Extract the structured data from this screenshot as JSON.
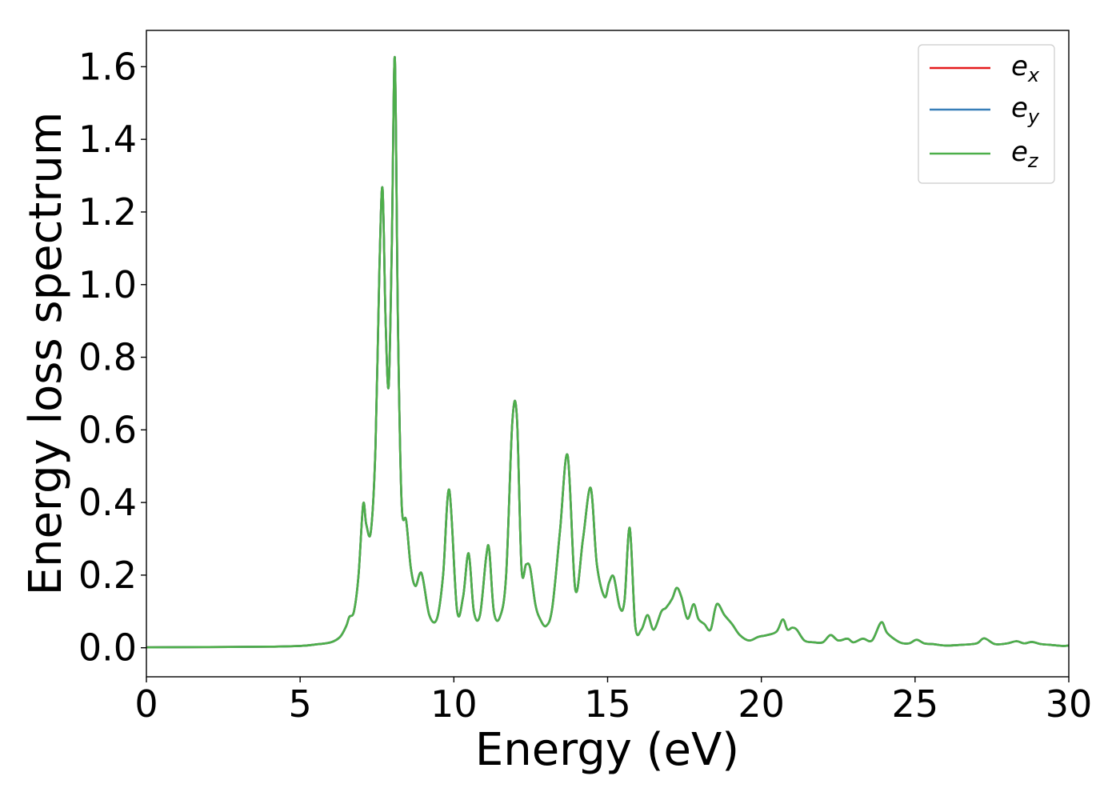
{
  "chart_data": {
    "type": "line",
    "title": "",
    "xlabel": "Energy (eV)",
    "ylabel": "Energy loss spectrum",
    "xlim": [
      0,
      30
    ],
    "ylim": [
      -0.08,
      1.7
    ],
    "xticks": [
      0,
      5,
      10,
      15,
      20,
      25,
      30
    ],
    "xtick_labels": [
      "0",
      "5",
      "10",
      "15",
      "20",
      "25",
      "30"
    ],
    "yticks": [
      0.0,
      0.2,
      0.4,
      0.6,
      0.8,
      1.0,
      1.2,
      1.4,
      1.6
    ],
    "ytick_labels": [
      "0.0",
      "0.2",
      "0.4",
      "0.6",
      "0.8",
      "1.0",
      "1.2",
      "1.4",
      "1.6"
    ],
    "grid": false,
    "legend_position": "top-right",
    "x": [
      0,
      2,
      4,
      5,
      5.5,
      6.0,
      6.3,
      6.5,
      6.6,
      6.75,
      6.9,
      7.05,
      7.15,
      7.3,
      7.45,
      7.58,
      7.68,
      7.78,
      7.88,
      7.98,
      8.08,
      8.18,
      8.3,
      8.45,
      8.6,
      8.75,
      8.95,
      9.2,
      9.45,
      9.65,
      9.85,
      10.1,
      10.3,
      10.48,
      10.65,
      10.85,
      11.05,
      11.15,
      11.3,
      11.5,
      11.7,
      11.9,
      12.05,
      12.2,
      12.35,
      12.48,
      12.65,
      12.8,
      13.0,
      13.2,
      13.45,
      13.7,
      13.95,
      14.2,
      14.45,
      14.65,
      14.9,
      15.05,
      15.2,
      15.4,
      15.55,
      15.72,
      15.9,
      16.1,
      16.3,
      16.5,
      16.75,
      16.9,
      17.1,
      17.25,
      17.4,
      17.6,
      17.8,
      17.95,
      18.15,
      18.35,
      18.55,
      18.8,
      19.05,
      19.3,
      19.6,
      19.9,
      20.2,
      20.5,
      20.7,
      20.85,
      21.0,
      21.15,
      21.4,
      21.7,
      22.0,
      22.25,
      22.5,
      22.8,
      23.0,
      23.3,
      23.6,
      23.9,
      24.1,
      24.5,
      24.8,
      25.05,
      25.3,
      25.6,
      26.0,
      26.5,
      27.0,
      27.25,
      27.6,
      28.0,
      28.3,
      28.55,
      28.8,
      29.1,
      29.4,
      29.8,
      30.0
    ],
    "series": [
      {
        "name": "ex",
        "color": "#e41a1c",
        "values": [
          0.001,
          0.002,
          0.003,
          0.005,
          0.009,
          0.015,
          0.03,
          0.06,
          0.085,
          0.1,
          0.2,
          0.395,
          0.34,
          0.32,
          0.55,
          1.05,
          1.265,
          0.9,
          0.72,
          1.1,
          1.625,
          0.9,
          0.4,
          0.35,
          0.22,
          0.17,
          0.205,
          0.09,
          0.08,
          0.2,
          0.435,
          0.105,
          0.14,
          0.26,
          0.1,
          0.09,
          0.25,
          0.27,
          0.1,
          0.085,
          0.2,
          0.62,
          0.635,
          0.22,
          0.23,
          0.22,
          0.12,
          0.08,
          0.06,
          0.11,
          0.32,
          0.53,
          0.16,
          0.3,
          0.44,
          0.23,
          0.14,
          0.18,
          0.195,
          0.11,
          0.13,
          0.33,
          0.06,
          0.05,
          0.09,
          0.05,
          0.1,
          0.11,
          0.135,
          0.165,
          0.14,
          0.08,
          0.12,
          0.08,
          0.065,
          0.05,
          0.12,
          0.09,
          0.065,
          0.035,
          0.02,
          0.03,
          0.035,
          0.045,
          0.078,
          0.05,
          0.055,
          0.05,
          0.02,
          0.015,
          0.015,
          0.035,
          0.02,
          0.025,
          0.015,
          0.025,
          0.02,
          0.07,
          0.04,
          0.015,
          0.012,
          0.022,
          0.012,
          0.01,
          0.006,
          0.008,
          0.012,
          0.026,
          0.01,
          0.012,
          0.018,
          0.012,
          0.016,
          0.01,
          0.008,
          0.005,
          0.006
        ]
      },
      {
        "name": "ey",
        "color": "#377eb8",
        "values": [
          0.001,
          0.002,
          0.003,
          0.005,
          0.009,
          0.015,
          0.03,
          0.06,
          0.085,
          0.1,
          0.2,
          0.395,
          0.34,
          0.32,
          0.55,
          1.05,
          1.265,
          0.9,
          0.72,
          1.1,
          1.625,
          0.9,
          0.4,
          0.35,
          0.22,
          0.17,
          0.205,
          0.09,
          0.08,
          0.2,
          0.435,
          0.105,
          0.14,
          0.26,
          0.1,
          0.09,
          0.25,
          0.27,
          0.1,
          0.085,
          0.2,
          0.62,
          0.635,
          0.22,
          0.23,
          0.22,
          0.12,
          0.08,
          0.06,
          0.11,
          0.32,
          0.53,
          0.16,
          0.3,
          0.44,
          0.23,
          0.14,
          0.18,
          0.195,
          0.11,
          0.13,
          0.33,
          0.06,
          0.05,
          0.09,
          0.05,
          0.1,
          0.11,
          0.135,
          0.165,
          0.14,
          0.08,
          0.12,
          0.08,
          0.065,
          0.05,
          0.12,
          0.09,
          0.065,
          0.035,
          0.02,
          0.03,
          0.035,
          0.045,
          0.078,
          0.05,
          0.055,
          0.05,
          0.02,
          0.015,
          0.015,
          0.035,
          0.02,
          0.025,
          0.015,
          0.025,
          0.02,
          0.07,
          0.04,
          0.015,
          0.012,
          0.022,
          0.012,
          0.01,
          0.006,
          0.008,
          0.012,
          0.026,
          0.01,
          0.012,
          0.018,
          0.012,
          0.016,
          0.01,
          0.008,
          0.005,
          0.006
        ]
      },
      {
        "name": "ez",
        "color": "#4daf4a",
        "values": [
          0.001,
          0.002,
          0.003,
          0.005,
          0.009,
          0.015,
          0.03,
          0.06,
          0.085,
          0.1,
          0.2,
          0.395,
          0.34,
          0.32,
          0.55,
          1.05,
          1.265,
          0.9,
          0.72,
          1.1,
          1.625,
          0.9,
          0.4,
          0.35,
          0.22,
          0.17,
          0.205,
          0.09,
          0.08,
          0.2,
          0.435,
          0.105,
          0.14,
          0.26,
          0.1,
          0.09,
          0.25,
          0.27,
          0.1,
          0.085,
          0.2,
          0.62,
          0.635,
          0.22,
          0.23,
          0.22,
          0.12,
          0.08,
          0.06,
          0.11,
          0.32,
          0.53,
          0.16,
          0.3,
          0.44,
          0.23,
          0.14,
          0.18,
          0.195,
          0.11,
          0.13,
          0.33,
          0.06,
          0.05,
          0.09,
          0.05,
          0.1,
          0.11,
          0.135,
          0.165,
          0.14,
          0.08,
          0.12,
          0.08,
          0.065,
          0.05,
          0.12,
          0.09,
          0.065,
          0.035,
          0.02,
          0.03,
          0.035,
          0.045,
          0.078,
          0.05,
          0.055,
          0.05,
          0.02,
          0.015,
          0.015,
          0.035,
          0.02,
          0.025,
          0.015,
          0.025,
          0.02,
          0.07,
          0.04,
          0.015,
          0.012,
          0.022,
          0.012,
          0.01,
          0.006,
          0.008,
          0.012,
          0.026,
          0.01,
          0.012,
          0.018,
          0.012,
          0.016,
          0.01,
          0.008,
          0.005,
          0.006
        ]
      }
    ],
    "legend": [
      {
        "base": "e",
        "sub": "x"
      },
      {
        "base": "e",
        "sub": "y"
      },
      {
        "base": "e",
        "sub": "z"
      }
    ]
  }
}
